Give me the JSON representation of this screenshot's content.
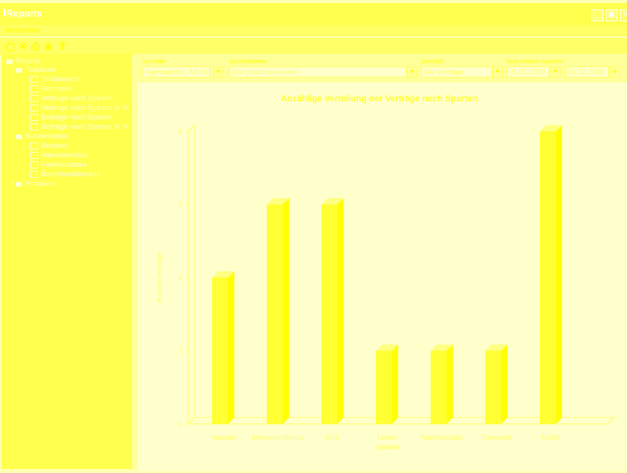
{
  "window": {
    "title": "Reports",
    "controls": [
      "_",
      "▣",
      "X"
    ]
  },
  "menu": {
    "items": [
      "Bearbeiten"
    ]
  },
  "toolbar": {
    "buttons": [
      "blank-doc-icon",
      "delete-icon",
      "print-icon",
      "camera-icon",
      "filter-icon"
    ]
  },
  "tree": {
    "root": "Reports",
    "groups": [
      {
        "label": "Taskboen",
        "items": [
          "Teilübersicht",
          "Renntene",
          "Verträge nach Sparten",
          "Verträge nach Sparten in %",
          "Beiträge nach Sparten",
          "Beiträge nach Sparten in %"
        ]
      },
      {
        "label": "Kundendaten",
        "items": [
          "Bestand",
          "Altersüberblick",
          "Familienstatus",
          "Branchenübersicht"
        ]
      },
      {
        "label": "Provision",
        "items": []
      }
    ]
  },
  "filters": {
    "vermittler": {
      "label": "Vermittler",
      "value": "Agenturleiter, Alfred"
    },
    "sachbearbeiter": {
      "label": "Sachbearbeiter",
      "value": "Alle (Sachbearbeiter)"
    },
    "geschaeft": {
      "label": "Geschäft",
      "value": "alle Verträge"
    },
    "beginn": {
      "label": "Beginndatum zwischen",
      "from": "01.01.2000",
      "to": "31.12.2008"
    }
  },
  "colors": {
    "bar": "#ffff33",
    "bar_side": "#ffff00",
    "axis": "#ffff66",
    "title": "#ffff33"
  },
  "chart_data": {
    "type": "bar",
    "title": "Anzählige Verteilung der Verträge nach Sparten",
    "xlabel": "Sparten",
    "ylabel": "Anzahl Verträge",
    "categories": [
      "Hausrat",
      "Investmentfonds",
      "KFZ",
      "Leben",
      "Rechtsschutz",
      "Transport",
      "Unfall"
    ],
    "values": [
      2,
      3,
      3,
      1,
      1,
      1,
      4
    ],
    "ylim": [
      0,
      4
    ],
    "yticks": [
      "0",
      "1",
      "2",
      "3",
      "4"
    ],
    "grid": false
  }
}
